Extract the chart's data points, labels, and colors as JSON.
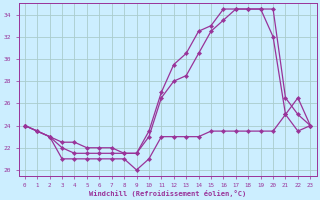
{
  "background_color": "#cceeff",
  "grid_color": "#aacccc",
  "line_color": "#993399",
  "xlabel": "Windchill (Refroidissement éolien,°C)",
  "xlabel_color": "#993399",
  "xlim": [
    -0.5,
    23.5
  ],
  "ylim": [
    19.5,
    35.0
  ],
  "yticks": [
    20,
    22,
    24,
    26,
    28,
    30,
    32,
    34
  ],
  "xticks": [
    0,
    1,
    2,
    3,
    4,
    5,
    6,
    7,
    8,
    9,
    10,
    11,
    12,
    13,
    14,
    15,
    16,
    17,
    18,
    19,
    20,
    21,
    22,
    23
  ],
  "series1_x": [
    0,
    1,
    2,
    3,
    4,
    5,
    6,
    7,
    8,
    9,
    10,
    11,
    12,
    13,
    14,
    15,
    16,
    17,
    18,
    19,
    20,
    21,
    22,
    23
  ],
  "series1_y": [
    24.0,
    23.5,
    23.0,
    21.0,
    21.0,
    21.0,
    21.0,
    21.0,
    21.0,
    20.0,
    21.0,
    23.0,
    23.0,
    23.0,
    23.0,
    23.5,
    23.5,
    23.5,
    23.5,
    23.5,
    23.5,
    25.0,
    23.5,
    24.0
  ],
  "series2_x": [
    0,
    1,
    2,
    3,
    4,
    5,
    6,
    7,
    8,
    9,
    10,
    11,
    12,
    13,
    14,
    15,
    16,
    17,
    18,
    19,
    20,
    21,
    22,
    23
  ],
  "series2_y": [
    24.0,
    23.5,
    23.0,
    22.0,
    21.5,
    21.5,
    21.5,
    21.5,
    21.5,
    21.5,
    23.0,
    26.5,
    28.0,
    28.5,
    30.5,
    32.5,
    33.5,
    34.5,
    34.5,
    34.5,
    32.0,
    25.0,
    26.5,
    24.0
  ],
  "series3_x": [
    0,
    1,
    2,
    3,
    4,
    5,
    6,
    7,
    8,
    9,
    10,
    11,
    12,
    13,
    14,
    15,
    16,
    17,
    18,
    19,
    20,
    21,
    22,
    23
  ],
  "series3_y": [
    24.0,
    23.5,
    23.0,
    22.5,
    22.5,
    22.0,
    22.0,
    22.0,
    21.5,
    21.5,
    23.5,
    27.0,
    29.5,
    30.5,
    32.5,
    33.0,
    34.5,
    34.5,
    34.5,
    34.5,
    34.5,
    26.5,
    25.0,
    24.0
  ]
}
